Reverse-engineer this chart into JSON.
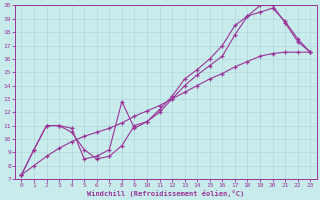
{
  "xlabel": "Windchill (Refroidissement éolien,°C)",
  "bg_color": "#c8ecec",
  "grid_color": "#b0d8d8",
  "line_color": "#993399",
  "xlim": [
    -0.5,
    23.5
  ],
  "ylim": [
    7,
    20
  ],
  "xticks": [
    0,
    1,
    2,
    3,
    4,
    5,
    6,
    7,
    8,
    9,
    10,
    11,
    12,
    13,
    14,
    15,
    16,
    17,
    18,
    19,
    20,
    21,
    22,
    23
  ],
  "yticks": [
    7,
    8,
    9,
    10,
    11,
    12,
    13,
    14,
    15,
    16,
    17,
    18,
    19,
    20
  ],
  "line1_x": [
    0,
    1,
    2,
    3,
    4,
    5,
    6,
    7,
    8,
    9,
    10,
    11,
    12,
    13,
    14,
    15,
    16,
    17,
    18,
    19,
    20,
    21,
    22,
    23
  ],
  "line1_y": [
    7.3,
    9.2,
    11.0,
    11.0,
    10.8,
    8.5,
    8.7,
    9.2,
    12.8,
    10.8,
    11.3,
    12.0,
    13.0,
    14.0,
    14.8,
    15.5,
    16.2,
    17.8,
    19.2,
    20.0,
    20.0,
    18.7,
    17.3,
    16.5
  ],
  "line2_x": [
    0,
    1,
    2,
    3,
    4,
    5,
    6,
    7,
    8,
    9,
    10,
    11,
    12,
    13,
    14,
    15,
    16,
    17,
    18,
    19,
    20,
    21,
    22,
    23
  ],
  "line2_y": [
    7.3,
    9.2,
    11.0,
    11.0,
    10.5,
    9.2,
    8.5,
    8.7,
    9.5,
    11.0,
    11.3,
    12.2,
    13.2,
    14.5,
    15.2,
    16.0,
    17.0,
    18.5,
    19.2,
    19.5,
    19.8,
    18.8,
    17.5,
    16.5
  ],
  "line3_x": [
    0,
    1,
    2,
    3,
    4,
    5,
    6,
    7,
    8,
    9,
    10,
    11,
    12,
    13,
    14,
    15,
    16,
    17,
    18,
    19,
    20,
    21,
    22,
    23
  ],
  "line3_y": [
    7.3,
    8.0,
    8.7,
    9.3,
    9.8,
    10.2,
    10.5,
    10.8,
    11.2,
    11.7,
    12.1,
    12.5,
    13.0,
    13.5,
    14.0,
    14.5,
    14.9,
    15.4,
    15.8,
    16.2,
    16.4,
    16.5,
    16.5,
    16.5
  ]
}
